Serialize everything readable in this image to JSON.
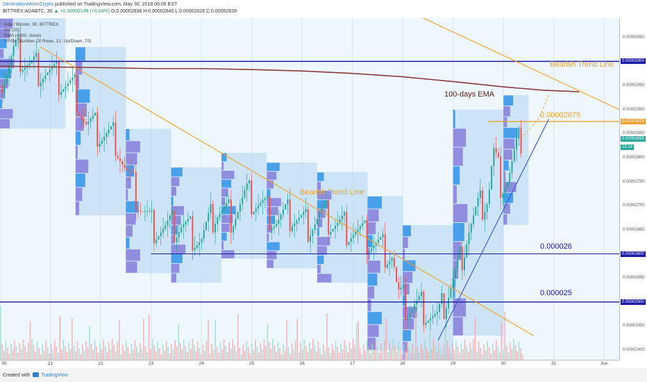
{
  "header": {
    "author": "DestinationMoonCrypto",
    "published": " published on TradingView.com, May 30, 2018 06:06 EST",
    "symbol": "BITTREX:ADABTC, 30",
    "change": "▲ +0.00000149 (+5.54%)",
    "ohlc": "O:0.00002836 H:0.00002840 L:0.00002828 C:0.00002839"
  },
  "legend": [
    "Ada / Bitcoin, 30, BITTREX",
    "Vol (20)",
    "EMA (4800, close)",
    "VPSV (Number Of Rows, 12, Up/Down, 70)"
  ],
  "annotations": {
    "bearish_top": "Bearish Trend Line",
    "bearish_mid": "Bearish Trend Line",
    "ema_label": "100-days EMA",
    "level_2875": "0.00002875",
    "level_26": "0.000026",
    "level_25": "0.000025"
  },
  "colors": {
    "up": "#26a69a",
    "down": "#ef5350",
    "ema": "#8b3a3a",
    "trend": "#f0a030",
    "level": "#1a1aa6",
    "support_line": "#3355cc",
    "profile": "#1e88e5"
  },
  "chart_data": {
    "type": "candlestick",
    "ylim": [
      2.38e-05,
      3.09e-05
    ],
    "xlim": [
      0,
      12.3
    ],
    "x_labels": [
      "00",
      "21",
      "22",
      "23",
      "24",
      "25",
      "26",
      "27",
      "28",
      "29",
      "30",
      "31",
      "Jun"
    ],
    "y_ticks": [
      "0.00003050",
      "0.00002950",
      "0.00002900",
      "0.00002850",
      "0.00002800",
      "0.00002750",
      "0.00002700",
      "0.00002650",
      "0.00002550",
      "0.00002500",
      "0.00002450",
      "0.00002400"
    ],
    "price_tags": [
      {
        "label": "0.00003000",
        "value": 3e-05,
        "color": "#1a1aa6"
      },
      {
        "label": "0.00002875",
        "value": 2.875e-05,
        "color": "#f0a030"
      },
      {
        "label": "0.00002839",
        "value": 2.839e-05,
        "color": "#26a69a"
      },
      {
        "label": "23:14",
        "value": 2.822e-05,
        "color": "#26a69a"
      },
      {
        "label": "0.00002600",
        "value": 2.6e-05,
        "color": "#1a1aa6"
      },
      {
        "label": "0.00002500",
        "value": 2.5e-05,
        "color": "#1a1aa6"
      }
    ],
    "close_path": [
      [
        0,
        2.95e-05
      ],
      [
        0.3,
        3.02e-05
      ],
      [
        0.6,
        2.99e-05
      ],
      [
        0.9,
        2.98e-05
      ],
      [
        1.2,
        2.96e-05
      ],
      [
        1.5,
        2.94e-05
      ],
      [
        1.7,
        2.87e-05
      ],
      [
        2.0,
        2.85e-05
      ],
      [
        2.3,
        2.84e-05
      ],
      [
        2.5,
        2.77e-05
      ],
      [
        2.8,
        2.7e-05
      ],
      [
        3.0,
        2.66e-05
      ],
      [
        3.3,
        2.65e-05
      ],
      [
        3.6,
        2.66e-05
      ],
      [
        4.0,
        2.63e-05
      ],
      [
        4.3,
        2.69e-05
      ],
      [
        4.6,
        2.68e-05
      ],
      [
        4.9,
        2.72e-05
      ],
      [
        5.2,
        2.7e-05
      ],
      [
        5.5,
        2.67e-05
      ],
      [
        5.8,
        2.68e-05
      ],
      [
        6.1,
        2.66e-05
      ],
      [
        6.4,
        2.68e-05
      ],
      [
        6.7,
        2.66e-05
      ],
      [
        7.0,
        2.65e-05
      ],
      [
        7.3,
        2.63e-05
      ],
      [
        7.6,
        2.61e-05
      ],
      [
        7.8,
        2.6e-05
      ],
      [
        7.9,
        2.51e-05
      ],
      [
        8.1,
        2.49e-05
      ],
      [
        8.4,
        2.49e-05
      ],
      [
        8.7,
        2.46e-05
      ],
      [
        8.9,
        2.52e-05
      ],
      [
        9.1,
        2.57e-05
      ],
      [
        9.3,
        2.65e-05
      ],
      [
        9.5,
        2.69e-05
      ],
      [
        9.7,
        2.72e-05
      ],
      [
        9.8,
        2.81e-05
      ],
      [
        9.95,
        2.75e-05
      ],
      [
        10.1,
        2.76e-05
      ],
      [
        10.25,
        2.81e-05
      ],
      [
        10.35,
        2.84e-05
      ]
    ],
    "ema_line": [
      [
        0,
        2.99e-05
      ],
      [
        2,
        2.987e-05
      ],
      [
        3,
        2.985e-05
      ],
      [
        4,
        2.985e-05
      ],
      [
        5,
        2.983e-05
      ],
      [
        6,
        2.98e-05
      ],
      [
        7,
        2.975e-05
      ],
      [
        8,
        2.968e-05
      ],
      [
        9,
        2.958e-05
      ],
      [
        10,
        2.947e-05
      ],
      [
        10.8,
        2.94e-05
      ],
      [
        11.5,
        2.937e-05
      ]
    ],
    "trend_lines": [
      {
        "name": "bearish_top",
        "points": [
          [
            8.2,
            3.1e-05
          ],
          [
            12.3,
            2.9e-05
          ]
        ]
      },
      {
        "name": "bearish_mid",
        "points": [
          [
            0.8,
            3.03e-05
          ],
          [
            10.6,
            2.43e-05
          ]
        ]
      },
      {
        "name": "support",
        "points": [
          [
            8.7,
            2.42e-05
          ],
          [
            10.9,
            2.88e-05
          ]
        ]
      }
    ],
    "levels": [
      {
        "value": 3e-05,
        "from": 0,
        "to": 12.3
      },
      {
        "value": 2.875e-05,
        "from": 9.7,
        "to": 12.3
      },
      {
        "value": 2.6e-05,
        "from": 3.0,
        "to": 12.3
      },
      {
        "value": 2.5e-05,
        "from": 0,
        "to": 12.3
      }
    ]
  }
}
